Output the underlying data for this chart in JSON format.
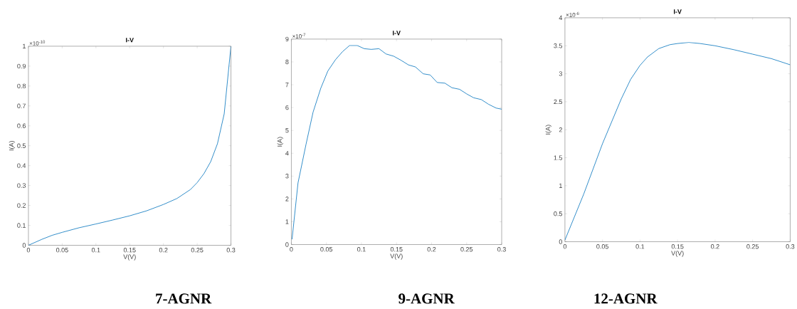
{
  "chart_data": [
    {
      "type": "line",
      "title": "I-V",
      "xlabel": "V(V)",
      "ylabel": "I(A)",
      "color": "#0072bd",
      "grid": false,
      "marker": "none",
      "line_style": "solid",
      "x": [
        0,
        0.02,
        0.035,
        0.05,
        0.075,
        0.1,
        0.125,
        0.15,
        0.175,
        0.2,
        0.22,
        0.24,
        0.25,
        0.26,
        0.27,
        0.28,
        0.29,
        0.3
      ],
      "values": [
        0,
        0.03,
        0.05,
        0.065,
        0.088,
        0.107,
        0.127,
        0.148,
        0.173,
        0.205,
        0.235,
        0.28,
        0.315,
        0.36,
        0.42,
        0.51,
        0.66,
        1.0
      ],
      "xlim": [
        0,
        0.3
      ],
      "xticks": [
        0,
        0.05,
        0.1,
        0.15,
        0.2,
        0.25,
        0.3
      ],
      "ylim": [
        0,
        1
      ],
      "yticks": [
        0,
        0.1,
        0.2,
        0.3,
        0.4,
        0.5,
        0.6,
        0.7,
        0.8,
        0.9,
        1
      ],
      "annotations": [
        "×10$^{-10}$",
        "7-AGNR"
      ]
    },
    {
      "type": "line",
      "title": "I-V",
      "xlabel": "V(V)",
      "ylabel": "I(A)",
      "color": "#0072bd",
      "grid": false,
      "marker": "none",
      "line_style": "solid",
      "x": [
        0.001,
        0.0095,
        0.021,
        0.031,
        0.042,
        0.052,
        0.063,
        0.073,
        0.083,
        0.094,
        0.104,
        0.114,
        0.125,
        0.135,
        0.146,
        0.156,
        0.167,
        0.177,
        0.188,
        0.198,
        0.208,
        0.219,
        0.229,
        0.24,
        0.25,
        0.26,
        0.271,
        0.281,
        0.292,
        0.3
      ],
      "values": [
        0.23,
        2.7,
        4.4,
        5.8,
        6.85,
        7.6,
        8.1,
        8.45,
        8.72,
        8.72,
        8.58,
        8.55,
        8.58,
        8.35,
        8.25,
        8.08,
        7.87,
        7.78,
        7.48,
        7.43,
        7.1,
        7.07,
        6.87,
        6.8,
        6.6,
        6.43,
        6.35,
        6.15,
        5.98,
        5.93
      ],
      "xlim": [
        0,
        0.3
      ],
      "xticks": [
        0,
        0.05,
        0.1,
        0.15,
        0.2,
        0.25,
        0.3
      ],
      "ylim": [
        0,
        9
      ],
      "yticks": [
        0,
        1,
        2,
        3,
        4,
        5,
        6,
        7,
        8,
        9
      ],
      "annotations": [
        "×10$^{-7}$",
        "9-AGNR"
      ]
    },
    {
      "type": "line",
      "title": "I-V",
      "xlabel": "V(V)",
      "ylabel": "I(A)",
      "color": "#0072bd",
      "grid": false,
      "marker": "none",
      "line_style": "solid",
      "x": [
        0,
        0.025,
        0.05,
        0.075,
        0.0875,
        0.1,
        0.11,
        0.125,
        0.14,
        0.15,
        0.165,
        0.18,
        0.2,
        0.225,
        0.25,
        0.275,
        0.3
      ],
      "values": [
        0.03,
        0.85,
        1.75,
        2.55,
        2.9,
        3.15,
        3.3,
        3.45,
        3.52,
        3.54,
        3.56,
        3.54,
        3.5,
        3.43,
        3.35,
        3.27,
        3.16
      ],
      "xlim": [
        0,
        0.3
      ],
      "xticks": [
        0,
        0.05,
        0.1,
        0.15,
        0.2,
        0.25,
        0.3
      ],
      "ylim": [
        0,
        4
      ],
      "yticks": [
        0,
        0.5,
        1,
        1.5,
        2,
        2.5,
        3,
        3.5,
        4
      ],
      "annotations": [
        "×10$^{-6}$",
        "12-AGNR"
      ]
    }
  ]
}
